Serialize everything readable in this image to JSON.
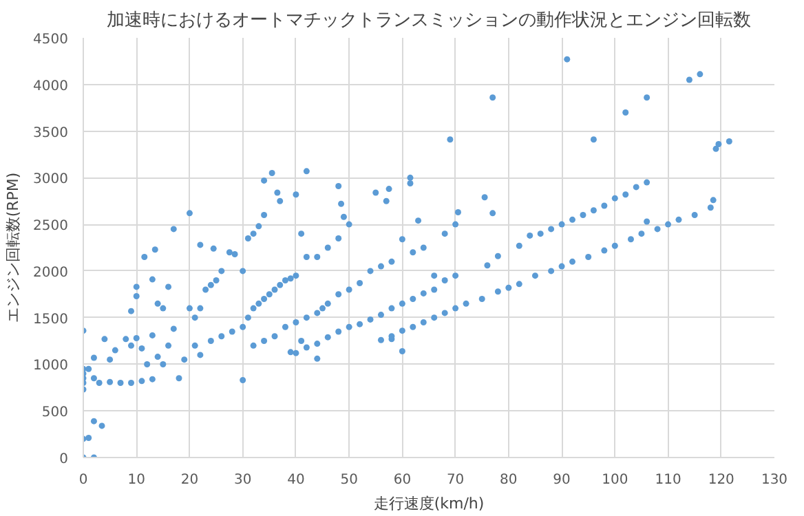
{
  "chart_data": {
    "type": "scatter",
    "title": "加速時におけるオートマチックトランスミッションの動作状況とエンジン回転数",
    "xlabel": "走行速度(km/h)",
    "ylabel": "エンジン回転数(RPM)",
    "xlim": [
      0,
      130
    ],
    "xticks": [
      0,
      10,
      20,
      30,
      40,
      50,
      60,
      70,
      80,
      90,
      100,
      110,
      120,
      130
    ],
    "ylim": [
      0,
      4500
    ],
    "yticks": [
      0,
      500,
      1000,
      1500,
      2000,
      2500,
      3000,
      3500,
      4000,
      4500
    ],
    "grid": true,
    "marker": "circle",
    "series": [
      {
        "color": "#5b9bd5",
        "x": [
          0,
          0,
          0,
          0,
          0,
          0,
          0,
          0,
          1,
          2,
          2,
          3.5,
          1,
          2,
          2,
          3,
          5,
          7,
          9,
          11,
          13,
          4,
          5,
          6,
          8,
          9,
          10,
          11,
          12,
          13,
          14,
          15,
          16,
          17,
          18,
          19,
          20,
          21,
          22,
          23,
          24,
          25,
          26,
          9,
          10,
          10,
          11.5,
          13.5,
          13,
          14,
          15,
          16,
          17,
          20,
          22,
          24.5,
          27.5,
          28.5,
          30,
          21,
          22,
          24,
          26,
          28,
          30,
          30,
          31,
          32,
          33,
          34,
          35,
          36,
          37,
          38,
          39,
          40,
          42,
          44,
          46,
          48,
          50,
          31,
          32,
          33,
          34,
          34,
          35.5,
          36.5,
          37,
          40,
          42,
          41,
          48,
          48.5,
          49,
          55,
          57.5,
          61.5,
          61.5,
          64,
          63,
          60,
          57,
          32,
          34,
          36,
          38,
          40,
          42,
          44,
          46,
          48,
          50,
          52,
          54,
          56,
          58,
          41,
          39,
          45,
          40,
          42,
          44,
          46,
          48,
          50,
          52,
          54,
          56,
          58,
          60,
          62,
          64,
          66,
          68,
          70,
          44,
          56,
          58,
          60,
          58,
          60,
          62,
          64,
          66,
          68,
          70,
          72,
          75,
          78,
          80,
          82,
          85,
          88,
          90,
          92,
          95,
          98,
          100,
          103,
          105,
          108,
          110,
          112,
          115,
          118,
          106,
          82,
          84,
          86,
          88,
          90,
          92,
          94,
          96,
          98,
          100,
          102,
          104,
          106,
          69,
          77,
          91,
          96,
          102,
          106,
          114,
          116,
          119,
          119.5,
          121.5,
          118.5,
          75.5,
          77,
          70.5,
          68,
          70,
          62,
          66,
          76,
          78
        ],
        "values": [
          800,
          850,
          900,
          950,
          730,
          1360,
          200,
          0,
          210,
          0,
          390,
          340,
          950,
          1070,
          850,
          800,
          810,
          800,
          800,
          820,
          840,
          1270,
          1050,
          1150,
          1270,
          1200,
          1280,
          1170,
          1000,
          1310,
          1080,
          1000,
          1200,
          1380,
          850,
          1050,
          1600,
          1500,
          1600,
          1800,
          1850,
          1900,
          2000,
          1570,
          1830,
          1730,
          2150,
          2230,
          1910,
          1650,
          1600,
          1830,
          2450,
          2620,
          2280,
          2240,
          2200,
          2180,
          2000,
          1200,
          1100,
          1250,
          1300,
          1350,
          1400,
          830,
          1500,
          1600,
          1650,
          1700,
          1750,
          1800,
          1850,
          1900,
          1920,
          1950,
          2150,
          2150,
          2250,
          2350,
          2500,
          2350,
          2400,
          2480,
          2600,
          2970,
          3050,
          2840,
          2750,
          2820,
          3070,
          2400,
          2910,
          2720,
          2580,
          2840,
          2880,
          3000,
          2940,
          2250,
          2540,
          2340,
          2750,
          1200,
          1250,
          1300,
          1400,
          1450,
          1500,
          1550,
          1650,
          1750,
          1800,
          1870,
          2000,
          2050,
          2100,
          1250,
          1130,
          1600,
          1120,
          1180,
          1220,
          1290,
          1350,
          1400,
          1430,
          1480,
          1530,
          1600,
          1650,
          1700,
          1760,
          1800,
          1900,
          1950,
          1060,
          1260,
          1270,
          1140,
          1300,
          1360,
          1400,
          1450,
          1500,
          1550,
          1600,
          1650,
          1700,
          1780,
          1820,
          1860,
          1950,
          2000,
          2050,
          2100,
          2150,
          2220,
          2270,
          2340,
          2400,
          2450,
          2500,
          2550,
          2600,
          2680,
          2530,
          2270,
          2380,
          2400,
          2450,
          2500,
          2550,
          2600,
          2650,
          2700,
          2780,
          2820,
          2900,
          2950,
          3410,
          3860,
          4270,
          3410,
          3700,
          3860,
          4050,
          4110,
          3310,
          3360,
          3390,
          2760,
          2790,
          2620,
          2630,
          2400,
          2500,
          2200,
          1950,
          2060,
          2160
        ]
      }
    ]
  }
}
